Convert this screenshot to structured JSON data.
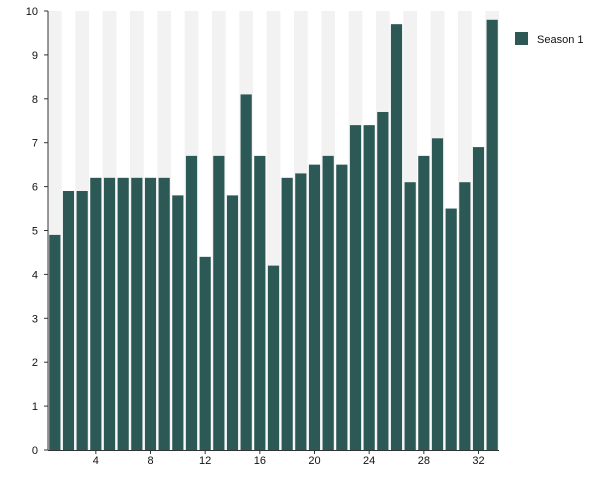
{
  "chart_data": {
    "type": "bar",
    "title": "",
    "xlabel": "",
    "ylabel": "",
    "x": [
      1,
      2,
      3,
      4,
      5,
      6,
      7,
      8,
      9,
      10,
      11,
      12,
      13,
      14,
      15,
      16,
      17,
      18,
      19,
      20,
      21,
      22,
      23,
      24,
      25,
      26,
      27,
      28,
      29,
      30,
      31,
      32,
      33
    ],
    "xticks": [
      4,
      8,
      12,
      16,
      20,
      24,
      28,
      32
    ],
    "ylim": [
      0,
      10
    ],
    "yticks": [
      0,
      1,
      2,
      3,
      4,
      5,
      6,
      7,
      8,
      9,
      10
    ],
    "grid": false,
    "background": "alternating-bands",
    "legend_position": "right",
    "series": [
      {
        "name": "Season 1",
        "color": "#2c5956",
        "values": [
          4.9,
          5.9,
          5.9,
          6.2,
          6.2,
          6.2,
          6.2,
          6.2,
          6.2,
          5.8,
          6.7,
          4.4,
          6.7,
          5.8,
          8.1,
          6.7,
          4.2,
          6.2,
          6.3,
          6.5,
          6.7,
          6.5,
          7.4,
          7.4,
          7.7,
          9.7,
          6.1,
          6.7,
          7.1,
          5.5,
          6.1,
          6.9,
          9.8
        ]
      }
    ],
    "colors": {
      "band": "#f2f2f2",
      "axis": "#333333",
      "text": "#111111"
    }
  }
}
